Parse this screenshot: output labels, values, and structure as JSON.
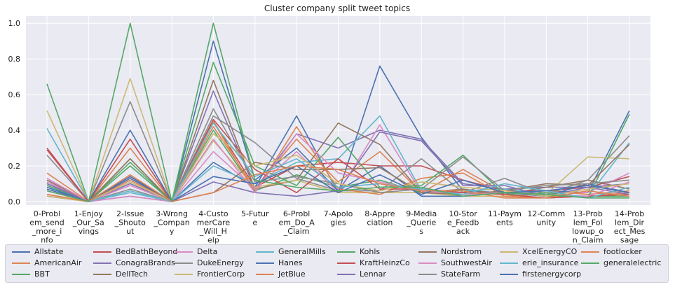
{
  "chart_data": {
    "type": "line",
    "title": "Cluster company split tweet topics",
    "xlabel": "",
    "ylabel": "",
    "ylim": [
      -0.02,
      1.04
    ],
    "yticks": [
      "0.0",
      "0.2",
      "0.4",
      "0.6",
      "0.8",
      "1.0"
    ],
    "grid": true,
    "legend_position": "bottom",
    "categories": [
      [
        "0-Probl",
        "em_send",
        "_more_i",
        "nfo"
      ],
      [
        "1-Enjoy",
        "_Our_Sa",
        "vings"
      ],
      [
        "2-Issue",
        "_Shouto",
        "ut"
      ],
      [
        "3-Wrong",
        "_Compan",
        "y"
      ],
      [
        "4-Custo",
        "merCare",
        "_Will_H",
        "elp"
      ],
      [
        "5-Futur",
        "e"
      ],
      [
        "6-Probl",
        "em_Do_A",
        "_Claim"
      ],
      [
        "7-Apolo",
        "gies"
      ],
      [
        "8-Appre",
        "ciation"
      ],
      [
        "9-Media",
        "_Querie",
        "s"
      ],
      [
        "10-Stor",
        "e_Feedb",
        "ack"
      ],
      [
        "11-Paym",
        "ents"
      ],
      [
        "12-Comm",
        "unity"
      ],
      [
        "13-Prob",
        "lem_Fol",
        "lowup_o",
        "n_Claim"
      ],
      [
        "14-Prob",
        "lem_Dir",
        "ect_Mes",
        "sage"
      ]
    ],
    "series": [
      {
        "name": "Allstate",
        "color": "#4c72b0",
        "values": [
          0.07,
          0,
          0.13,
          0,
          0.22,
          0.08,
          0.48,
          0.05,
          0.76,
          0.36,
          0.06,
          0.05,
          0.06,
          0.05,
          0.51
        ]
      },
      {
        "name": "AmericanAir",
        "color": "#dd8452",
        "values": [
          0.16,
          0,
          0.3,
          0,
          0.42,
          0.07,
          0.35,
          0.11,
          0.28,
          0.05,
          0.18,
          0.05,
          0.06,
          0.04,
          0.06
        ]
      },
      {
        "name": "BBT",
        "color": "#55a868",
        "values": [
          0.66,
          0,
          0.2,
          0,
          0.4,
          0.06,
          0.15,
          0.08,
          0.12,
          0.05,
          0.04,
          0.05,
          0.03,
          0.03,
          0.03
        ]
      },
      {
        "name": "BedBathBeyond",
        "color": "#c44e52",
        "values": [
          0.3,
          0,
          0.35,
          0,
          0.45,
          0.08,
          0.2,
          0.22,
          0.2,
          0.2,
          0.12,
          0.06,
          0.06,
          0.08,
          0.14
        ]
      },
      {
        "name": "ConagraBrands",
        "color": "#8172b3",
        "values": [
          0.12,
          0,
          0.1,
          0,
          0.62,
          0.07,
          0.38,
          0.3,
          0.4,
          0.35,
          0.1,
          0.07,
          0.08,
          0.08,
          0.1
        ]
      },
      {
        "name": "DellTech",
        "color": "#937860",
        "values": [
          0.03,
          0,
          0.24,
          0,
          0.68,
          0.07,
          0.12,
          0.44,
          0.32,
          0.05,
          0.07,
          0.04,
          0.08,
          0.12,
          0.07
        ]
      },
      {
        "name": "Delta",
        "color": "#da8bc3",
        "values": [
          0.11,
          0,
          0.09,
          0,
          0.28,
          0.07,
          0.28,
          0.05,
          0.43,
          0.05,
          0.05,
          0.05,
          0.05,
          0.05,
          0.16
        ]
      },
      {
        "name": "DukeEnergy",
        "color": "#8c8c8c",
        "values": [
          0.26,
          0,
          0.56,
          0,
          0.48,
          0.33,
          0.13,
          0.06,
          0.06,
          0.24,
          0.05,
          0.13,
          0.04,
          0.12,
          0.37
        ]
      },
      {
        "name": "FrontierCorp",
        "color": "#ccb974",
        "values": [
          0.51,
          0,
          0.69,
          0,
          0.34,
          0.08,
          0.12,
          0.05,
          0.05,
          0.05,
          0.03,
          0.03,
          0.04,
          0.25,
          0.24
        ]
      },
      {
        "name": "GeneralMills",
        "color": "#64b5cd",
        "values": [
          0.41,
          0,
          0.05,
          0,
          0.2,
          0.1,
          0.22,
          0.24,
          0.48,
          0.06,
          0.06,
          0.07,
          0.04,
          0.03,
          0.33
        ]
      },
      {
        "name": "Hanes",
        "color": "#4c72b0",
        "values": [
          0.1,
          0,
          0.4,
          0,
          0.9,
          0.12,
          0.3,
          0.06,
          0.2,
          0.03,
          0.03,
          0.05,
          0.03,
          0.1,
          0.05
        ]
      },
      {
        "name": "JetBlue",
        "color": "#dd8452",
        "values": [
          0.04,
          0,
          0.12,
          0,
          0.45,
          0.05,
          0.42,
          0.07,
          0.04,
          0.13,
          0.16,
          0.03,
          0.02,
          0.03,
          0.05
        ]
      },
      {
        "name": "Kohls",
        "color": "#55a868",
        "values": [
          0.09,
          0,
          0.22,
          0,
          0.78,
          0.2,
          0.09,
          0.36,
          0.08,
          0.09,
          0.26,
          0.04,
          0.05,
          0.02,
          0.49
        ]
      },
      {
        "name": "KraftHeinzCo",
        "color": "#c44e52",
        "values": [
          0.29,
          0,
          0.14,
          0,
          0.46,
          0.18,
          0.05,
          0.24,
          0.07,
          0.07,
          0.05,
          0.04,
          0.02,
          0.03,
          0.04
        ]
      },
      {
        "name": "Lennar",
        "color": "#8172b3",
        "values": [
          0.1,
          0,
          0.03,
          0,
          0.11,
          0.05,
          0.03,
          0.06,
          0.39,
          0.34,
          0.09,
          0.09,
          0.03,
          0.08,
          0.04
        ]
      },
      {
        "name": "Nordstrom",
        "color": "#937860",
        "values": [
          0.12,
          0,
          0.24,
          0,
          0.05,
          0.22,
          0.18,
          0.18,
          0.19,
          0.05,
          0.04,
          0.06,
          0.1,
          0.09,
          0.32
        ]
      },
      {
        "name": "SouthwestAir",
        "color": "#da8bc3",
        "values": [
          0.13,
          0,
          0.03,
          0,
          0.35,
          0.05,
          0.38,
          0.16,
          0.11,
          0.06,
          0.04,
          0.05,
          0.04,
          0.03,
          0.11
        ]
      },
      {
        "name": "StateFarm",
        "color": "#8c8c8c",
        "values": [
          0.06,
          0,
          0.07,
          0,
          0.52,
          0.11,
          0.14,
          0.1,
          0.05,
          0.07,
          0.25,
          0.06,
          0.09,
          0.1,
          0.12
        ]
      },
      {
        "name": "XcelEnergyCO",
        "color": "#ccb974",
        "values": [
          0.03,
          0,
          0.11,
          0,
          0.38,
          0.2,
          0.26,
          0.1,
          0.06,
          0.11,
          0.08,
          0.06,
          0.03,
          0.07,
          0.1
        ]
      },
      {
        "name": "erie_insurance",
        "color": "#64b5cd",
        "values": [
          0.08,
          0,
          0.06,
          0,
          0.44,
          0.14,
          0.24,
          0.08,
          0.1,
          0.07,
          0.04,
          0.1,
          0.06,
          0.02,
          0.08
        ]
      },
      {
        "name": "firstenergycorp",
        "color": "#4c72b0",
        "values": [
          0.08,
          0,
          0.14,
          0,
          0.14,
          0.1,
          0.2,
          0.05,
          0.15,
          0.04,
          0.12,
          0.05,
          0.06,
          0.09,
          0.05
        ]
      },
      {
        "name": "footlocker",
        "color": "#dd8452",
        "values": [
          0.04,
          0,
          0.15,
          0,
          0.05,
          0.15,
          0.2,
          0.18,
          0.1,
          0.06,
          0.06,
          0.02,
          0.02,
          0.06,
          0.03
        ]
      },
      {
        "name": "generalelectric",
        "color": "#55a868",
        "values": [
          0.06,
          0,
          1.0,
          0,
          1.0,
          0.12,
          0.08,
          0.06,
          0.08,
          0.08,
          0.03,
          0.05,
          0.04,
          0.02,
          0.02
        ]
      }
    ]
  }
}
